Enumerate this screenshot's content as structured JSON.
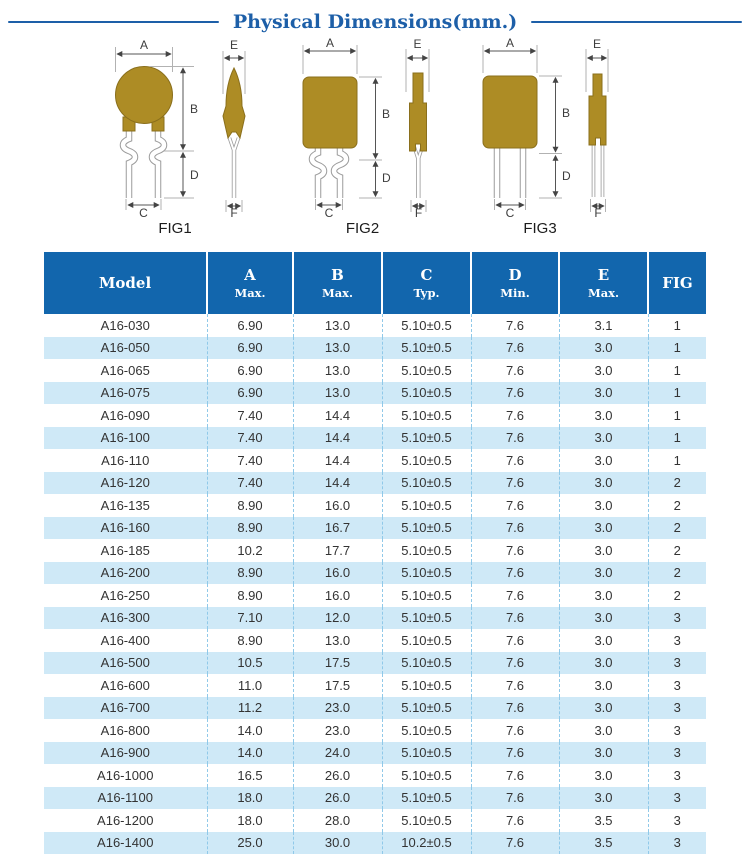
{
  "title": "Physical Dimensions(mm.)",
  "figures": [
    {
      "caption": "FIG1",
      "labels": {
        "A": "A",
        "B": "B",
        "C": "C",
        "D": "D",
        "E": "E",
        "F": "F"
      }
    },
    {
      "caption": "FIG2",
      "labels": {
        "A": "A",
        "B": "B",
        "C": "C",
        "D": "D",
        "E": "E",
        "F": "F"
      }
    },
    {
      "caption": "FIG3",
      "labels": {
        "A": "A",
        "B": "B",
        "C": "C",
        "D": "D",
        "E": "E",
        "F": "F"
      }
    }
  ],
  "table": {
    "columns": [
      {
        "label": "Model",
        "sub": ""
      },
      {
        "label": "A",
        "sub": "Max."
      },
      {
        "label": "B",
        "sub": "Max."
      },
      {
        "label": "C",
        "sub": "Typ."
      },
      {
        "label": "D",
        "sub": "Min."
      },
      {
        "label": "E",
        "sub": "Max."
      },
      {
        "label": "FIG",
        "sub": ""
      }
    ],
    "rows": [
      [
        "A16-030",
        "6.90",
        "13.0",
        "5.10±0.5",
        "7.6",
        "3.1",
        "1"
      ],
      [
        "A16-050",
        "6.90",
        "13.0",
        "5.10±0.5",
        "7.6",
        "3.0",
        "1"
      ],
      [
        "A16-065",
        "6.90",
        "13.0",
        "5.10±0.5",
        "7.6",
        "3.0",
        "1"
      ],
      [
        "A16-075",
        "6.90",
        "13.0",
        "5.10±0.5",
        "7.6",
        "3.0",
        "1"
      ],
      [
        "A16-090",
        "7.40",
        "14.4",
        "5.10±0.5",
        "7.6",
        "3.0",
        "1"
      ],
      [
        "A16-100",
        "7.40",
        "14.4",
        "5.10±0.5",
        "7.6",
        "3.0",
        "1"
      ],
      [
        "A16-110",
        "7.40",
        "14.4",
        "5.10±0.5",
        "7.6",
        "3.0",
        "1"
      ],
      [
        "A16-120",
        "7.40",
        "14.4",
        "5.10±0.5",
        "7.6",
        "3.0",
        "2"
      ],
      [
        "A16-135",
        "8.90",
        "16.0",
        "5.10±0.5",
        "7.6",
        "3.0",
        "2"
      ],
      [
        "A16-160",
        "8.90",
        "16.7",
        "5.10±0.5",
        "7.6",
        "3.0",
        "2"
      ],
      [
        "A16-185",
        "10.2",
        "17.7",
        "5.10±0.5",
        "7.6",
        "3.0",
        "2"
      ],
      [
        "A16-200",
        "8.90",
        "16.0",
        "5.10±0.5",
        "7.6",
        "3.0",
        "2"
      ],
      [
        "A16-250",
        "8.90",
        "16.0",
        "5.10±0.5",
        "7.6",
        "3.0",
        "2"
      ],
      [
        "A16-300",
        "7.10",
        "12.0",
        "5.10±0.5",
        "7.6",
        "3.0",
        "3"
      ],
      [
        "A16-400",
        "8.90",
        "13.0",
        "5.10±0.5",
        "7.6",
        "3.0",
        "3"
      ],
      [
        "A16-500",
        "10.5",
        "17.5",
        "5.10±0.5",
        "7.6",
        "3.0",
        "3"
      ],
      [
        "A16-600",
        "11.0",
        "17.5",
        "5.10±0.5",
        "7.6",
        "3.0",
        "3"
      ],
      [
        "A16-700",
        "11.2",
        "23.0",
        "5.10±0.5",
        "7.6",
        "3.0",
        "3"
      ],
      [
        "A16-800",
        "14.0",
        "23.0",
        "5.10±0.5",
        "7.6",
        "3.0",
        "3"
      ],
      [
        "A16-900",
        "14.0",
        "24.0",
        "5.10±0.5",
        "7.6",
        "3.0",
        "3"
      ],
      [
        "A16-1000",
        "16.5",
        "26.0",
        "5.10±0.5",
        "7.6",
        "3.0",
        "3"
      ],
      [
        "A16-1100",
        "18.0",
        "26.0",
        "5.10±0.5",
        "7.6",
        "3.0",
        "3"
      ],
      [
        "A16-1200",
        "18.0",
        "28.0",
        "5.10±0.5",
        "7.6",
        "3.5",
        "3"
      ],
      [
        "A16-1400",
        "25.0",
        "30.0",
        "10.2±0.5",
        "7.6",
        "3.5",
        "3"
      ]
    ]
  },
  "colors": {
    "header_bg": "#1266ad",
    "row_alt": "#cfe9f7",
    "title_color": "#1d5fa8",
    "body_fill": "#ad8c25"
  }
}
